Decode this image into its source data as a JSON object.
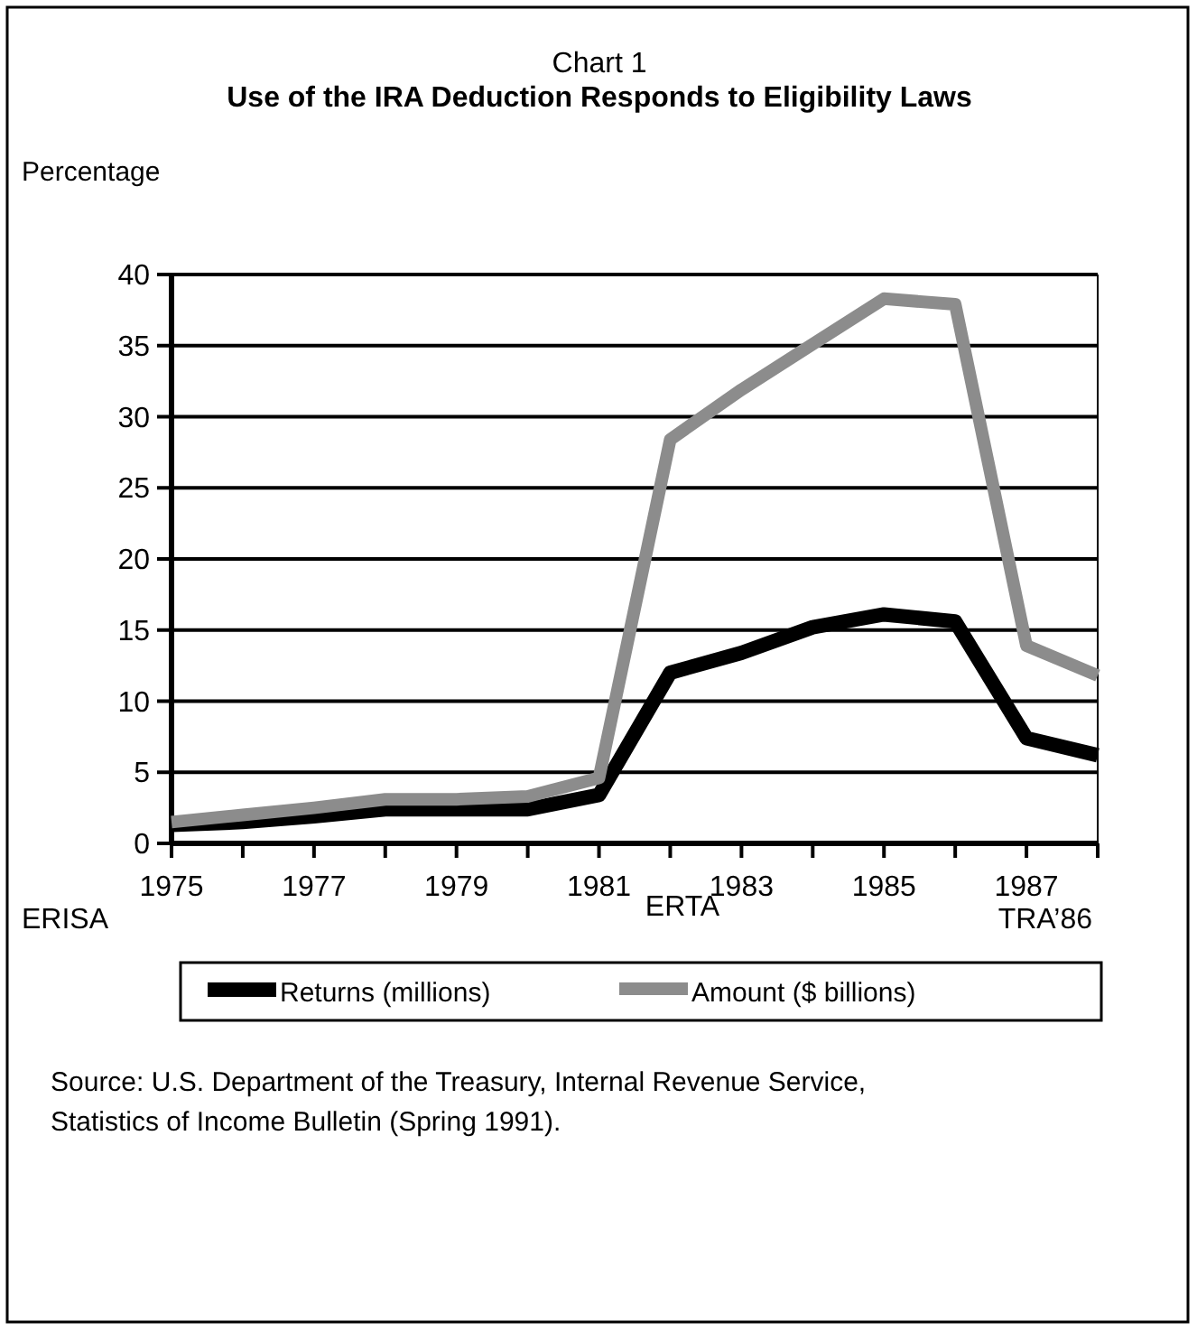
{
  "chart_data": {
    "type": "line",
    "title": "Chart 1",
    "subtitle": "Use of the IRA Deduction Responds to Eligibility Laws",
    "ylabel": "Percentage",
    "x": [
      1975,
      1976,
      1977,
      1978,
      1979,
      1980,
      1981,
      1982,
      1983,
      1984,
      1985,
      1986,
      1987,
      1988
    ],
    "series": [
      {
        "name": "Returns (millions)",
        "color": "#000000",
        "values": [
          1.3,
          1.5,
          1.9,
          2.4,
          2.4,
          2.4,
          3.4,
          12.0,
          13.4,
          15.2,
          16.1,
          15.6,
          7.4,
          6.2
        ]
      },
      {
        "name": "Amount ($ billions)",
        "color": "#8c8c8c",
        "values": [
          1.5,
          2.0,
          2.5,
          3.1,
          3.1,
          3.3,
          4.6,
          28.4,
          31.9,
          35.1,
          38.3,
          37.9,
          13.9,
          11.8
        ]
      }
    ],
    "xlim": [
      1975,
      1988
    ],
    "xticks": [
      1975,
      {
        "value": 1976,
        "label": null
      },
      1977,
      {
        "value": 1978,
        "label": null
      },
      1979,
      {
        "value": 1980,
        "label": null
      },
      1981,
      {
        "value": 1982,
        "label": null
      },
      1983,
      {
        "value": 1984,
        "label": null
      },
      1985,
      {
        "value": 1986,
        "label": null
      },
      1987,
      {
        "value": 1988,
        "label": null
      }
    ],
    "ylim": [
      0,
      40
    ],
    "yticks": [
      0,
      5,
      10,
      15,
      20,
      25,
      30,
      35,
      40
    ],
    "grid": "y",
    "legend": "bottom",
    "annotations": [
      "ERISA",
      "ERTA",
      "TRA’86",
      "Source: U.S. Department of the Treasury, Internal Revenue Service, Statistics of Income Bulletin (Spring 1991)."
    ]
  }
}
